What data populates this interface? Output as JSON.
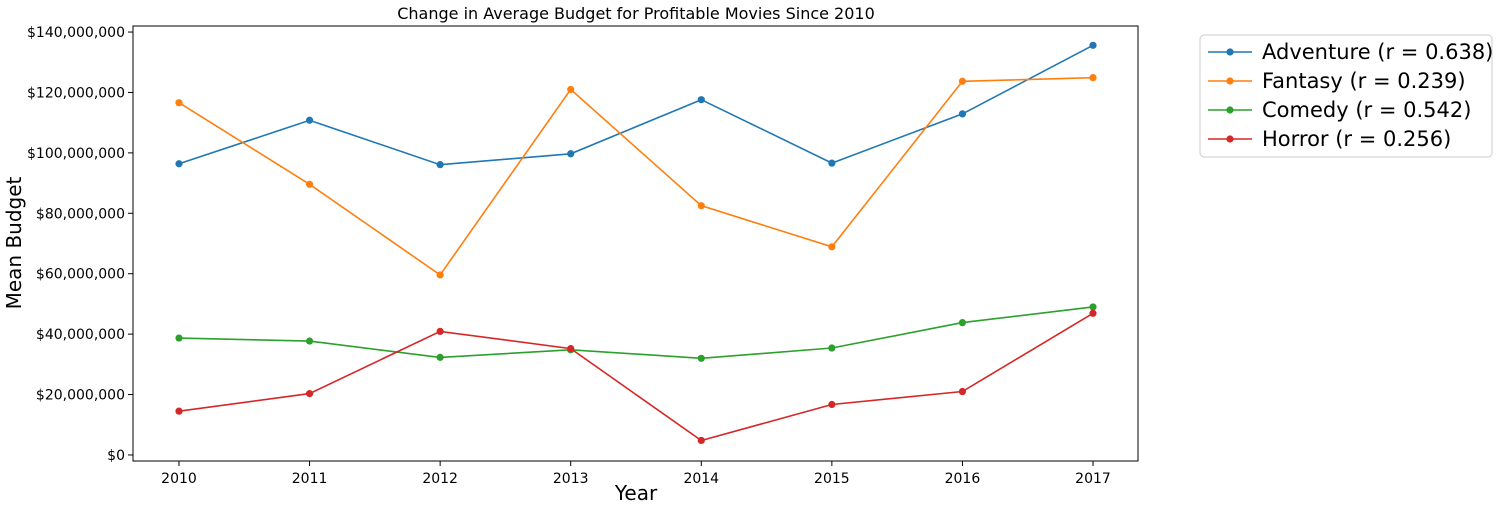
{
  "chart_data": {
    "type": "line",
    "title": "Change in Average Budget for Profitable Movies Since 2010",
    "xlabel": "Year",
    "ylabel": "Mean Budget",
    "x": [
      2010,
      2011,
      2012,
      2013,
      2014,
      2015,
      2016,
      2017
    ],
    "x_tick_labels": [
      "2010",
      "2011",
      "2012",
      "2013",
      "2014",
      "2015",
      "2016",
      "2017"
    ],
    "ylim": [
      -2000000,
      142000000
    ],
    "y_ticks": [
      0,
      20000000,
      40000000,
      60000000,
      80000000,
      100000000,
      120000000,
      140000000
    ],
    "y_tick_labels": [
      "$0",
      "$20,000,000",
      "$40,000,000",
      "$60,000,000",
      "$80,000,000",
      "$100,000,000",
      "$120,000,000",
      "$140,000,000"
    ],
    "grid": false,
    "legend_position": "outside-top-right",
    "series": [
      {
        "name": "Adventure (r = 0.638)",
        "color": "#1f77b4",
        "values": [
          96400000,
          110800000,
          96100000,
          99700000,
          117600000,
          96600000,
          112900000,
          135600000
        ]
      },
      {
        "name": "Fantasy (r = 0.239)",
        "color": "#ff7f0e",
        "values": [
          116600000,
          89600000,
          59600000,
          121000000,
          82500000,
          68900000,
          123700000,
          124900000
        ]
      },
      {
        "name": "Comedy (r = 0.542)",
        "color": "#2ca02c",
        "values": [
          38700000,
          37700000,
          32300000,
          34800000,
          32000000,
          35400000,
          43800000,
          49000000
        ]
      },
      {
        "name": "Horror (r = 0.256)",
        "color": "#d62728",
        "values": [
          14500000,
          20300000,
          40900000,
          35200000,
          4800000,
          16700000,
          21000000,
          46900000
        ]
      }
    ]
  }
}
